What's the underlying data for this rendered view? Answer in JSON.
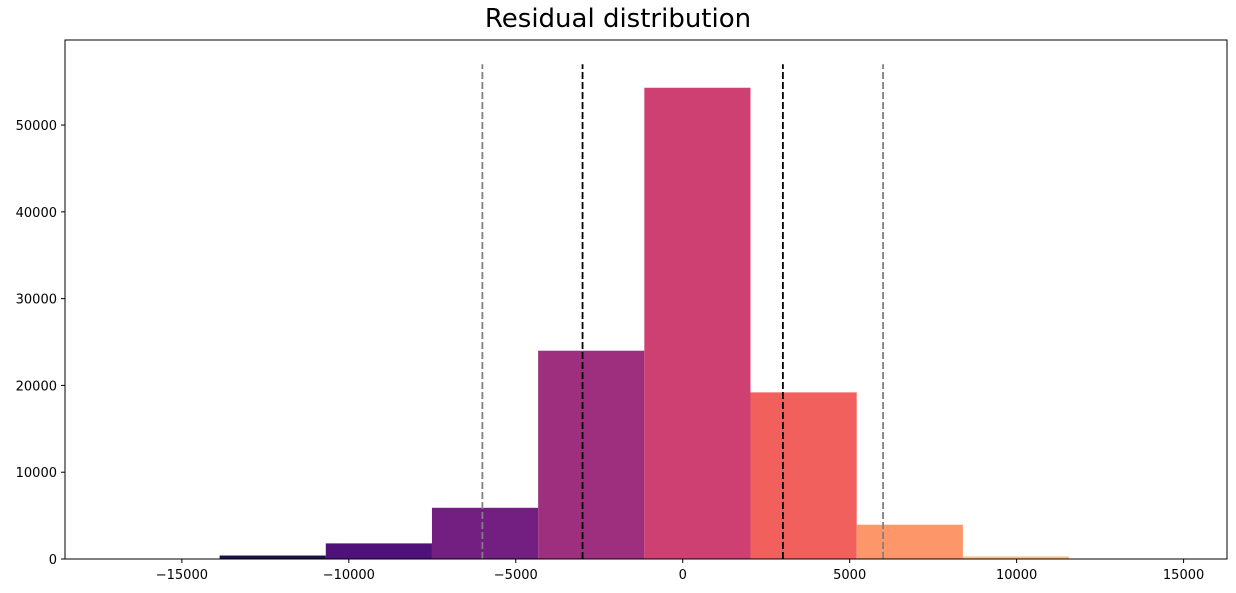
{
  "chart_data": {
    "type": "bar",
    "title": "Residual distribution",
    "xlabel": "",
    "ylabel": "",
    "xlim": [
      -18500,
      16300
    ],
    "ylim": [
      0,
      59800
    ],
    "bins": [
      {
        "x0": -17050,
        "x1": -13870,
        "count": 50,
        "color": "#000004"
      },
      {
        "x0": -13870,
        "x1": -10690,
        "count": 400,
        "color": "#1c1044"
      },
      {
        "x0": -10690,
        "x1": -7510,
        "count": 1800,
        "color": "#4f127b"
      },
      {
        "x0": -7510,
        "x1": -4330,
        "count": 5900,
        "color": "#721f81"
      },
      {
        "x0": -4330,
        "x1": -1150,
        "count": 24000,
        "color": "#9e2f7f"
      },
      {
        "x0": -1150,
        "x1": 2030,
        "count": 54300,
        "color": "#cd4071"
      },
      {
        "x0": 2030,
        "x1": 5210,
        "count": 19200,
        "color": "#f1605d"
      },
      {
        "x0": 5210,
        "x1": 8390,
        "count": 3950,
        "color": "#fd9668"
      },
      {
        "x0": 8390,
        "x1": 11570,
        "count": 300,
        "color": "#fec287"
      },
      {
        "x0": 11570,
        "x1": 14750,
        "count": 20,
        "color": "#fcfdbf"
      }
    ],
    "vlines": [
      {
        "x": -6000,
        "color": "#808080"
      },
      {
        "x": -3000,
        "color": "#000000"
      },
      {
        "x": 3000,
        "color": "#000000"
      },
      {
        "x": 6000,
        "color": "#808080"
      }
    ],
    "vline_top": 57000,
    "x_ticks": [
      -15000,
      -10000,
      -5000,
      0,
      5000,
      10000,
      15000
    ],
    "x_tick_labels": [
      "−15000",
      "−10000",
      "−5000",
      "0",
      "5000",
      "10000",
      "15000"
    ],
    "y_ticks": [
      0,
      10000,
      20000,
      30000,
      40000,
      50000
    ],
    "y_tick_labels": [
      "0",
      "10000",
      "20000",
      "30000",
      "40000",
      "50000"
    ],
    "grid": false,
    "legend": "none"
  }
}
